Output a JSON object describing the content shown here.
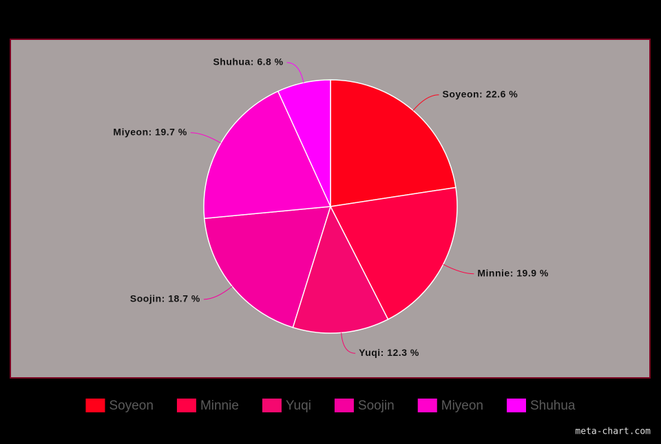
{
  "chart_data": {
    "type": "pie",
    "categories": [
      "Soyeon",
      "Minnie",
      "Yuqi",
      "Soojin",
      "Miyeon",
      "Shuhua"
    ],
    "values": [
      22.6,
      19.9,
      12.3,
      18.7,
      19.7,
      6.8
    ],
    "value_labels": [
      "Soyeon: 22.6 %",
      "Minnie: 19.9 %",
      "Yuqi: 12.3 %",
      "Soojin: 18.7 %",
      "Miyeon: 19.7 %",
      "Shuhua: 6.8 %"
    ],
    "colors": [
      "#ff0019",
      "#ff0045",
      "#f5086f",
      "#f5009e",
      "#ff00cc",
      "#ff00ff"
    ],
    "legend_position": "bottom",
    "watermark": "meta-chart.com"
  }
}
